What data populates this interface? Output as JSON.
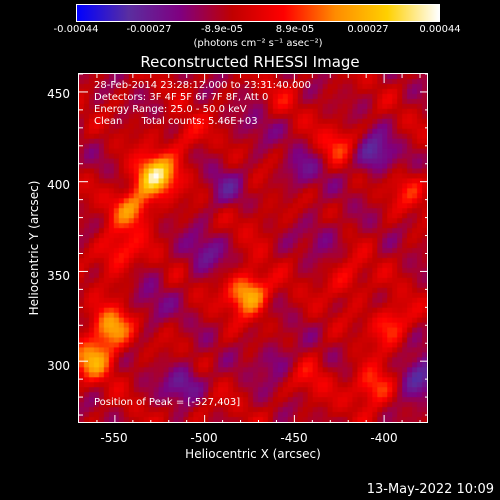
{
  "colorbar": {
    "ticks": [
      "-0.00044",
      "-0.00027",
      "-8.9e-05",
      "8.9e-05",
      "0.00027",
      "0.00044"
    ],
    "unit": "(photons cm⁻² s⁻¹ asec⁻²)"
  },
  "info": {
    "line1": "28-Feb-2014 23:28:12.000 to 23:31:40.000",
    "line2": "Detectors: 3F 4F 5F 6F 7F 8F, Att 0",
    "line3": "Energy Range: 25.0 - 50.0 keV",
    "line4": "Clean      Total counts: 5.46E+03",
    "peak": "Position of Peak = [-527,403]"
  },
  "timestamp": "13-May-2022 10:09",
  "chart_data": {
    "type": "heatmap",
    "title": "Reconstructed RHESSI Image",
    "xlabel": "Heliocentric X (arcsec)",
    "ylabel": "Heliocentric Y (arcsec)",
    "xlim": [
      -570,
      -375
    ],
    "ylim": [
      265,
      460
    ],
    "xticks": [
      "-550",
      "-500",
      "-450",
      "-400"
    ],
    "yticks": [
      "300",
      "350",
      "400",
      "450"
    ],
    "xtick_values": [
      -550,
      -500,
      -450,
      -400
    ],
    "ytick_values": [
      300,
      350,
      400,
      450
    ],
    "colorscale_range": [
      -0.00044,
      0.00044
    ],
    "colormap_stops": [
      "#0000ff",
      "#5a2ea0",
      "#800080",
      "#c00000",
      "#ff0000",
      "#ff8c00",
      "#ffd000",
      "#ffffff"
    ],
    "peak_position": [
      -527,
      403
    ],
    "hotspots": [
      {
        "x": -527,
        "y": 403,
        "value": 0.00044
      },
      {
        "x": -540,
        "y": 385,
        "value": 0.00026
      },
      {
        "x": -475,
        "y": 337,
        "value": 0.00036
      },
      {
        "x": -552,
        "y": 318,
        "value": 0.00033
      },
      {
        "x": -562,
        "y": 300,
        "value": 0.00028
      },
      {
        "x": -548,
        "y": 360,
        "value": 0.0002
      },
      {
        "x": -510,
        "y": 425,
        "value": 0.00012
      },
      {
        "x": -405,
        "y": 285,
        "value": 0.00024
      },
      {
        "x": -395,
        "y": 320,
        "value": 0.0002
      },
      {
        "x": -420,
        "y": 345,
        "value": 0.00014
      },
      {
        "x": -425,
        "y": 420,
        "value": 0.00015
      },
      {
        "x": -385,
        "y": 395,
        "value": 0.00012
      },
      {
        "x": -505,
        "y": 275,
        "value": 9e-05
      },
      {
        "x": -440,
        "y": 290,
        "value": 0.0001
      },
      {
        "x": -470,
        "y": 380,
        "value": 7e-05
      },
      {
        "x": -457,
        "y": 445,
        "value": 6e-05
      }
    ],
    "coldspots": [
      {
        "x": -510,
        "y": 285,
        "value": -0.00022
      },
      {
        "x": -380,
        "y": 290,
        "value": -0.00026
      },
      {
        "x": -405,
        "y": 415,
        "value": -0.00022
      },
      {
        "x": -488,
        "y": 395,
        "value": -0.00012
      },
      {
        "x": -445,
        "y": 405,
        "value": -0.00012
      },
      {
        "x": -500,
        "y": 360,
        "value": -0.00014
      },
      {
        "x": -530,
        "y": 330,
        "value": -0.0001
      },
      {
        "x": -460,
        "y": 300,
        "value": -0.00012
      },
      {
        "x": -432,
        "y": 370,
        "value": -0.0001
      },
      {
        "x": -470,
        "y": 430,
        "value": -8e-05
      }
    ]
  }
}
